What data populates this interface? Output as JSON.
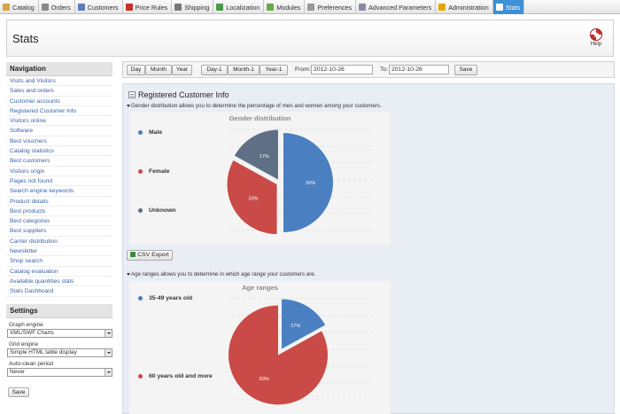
{
  "tabs": [
    {
      "label": "Catalog",
      "icon": "catalog-icon",
      "color": "#d9a441"
    },
    {
      "label": "Orders",
      "icon": "orders-icon",
      "color": "#8a8a8a"
    },
    {
      "label": "Customers",
      "icon": "customers-icon",
      "color": "#5b7fb8"
    },
    {
      "label": "Price Rules",
      "icon": "price-rules-icon",
      "color": "#c9302c"
    },
    {
      "label": "Shipping",
      "icon": "shipping-icon",
      "color": "#777777"
    },
    {
      "label": "Localization",
      "icon": "localization-icon",
      "color": "#4a9a4a"
    },
    {
      "label": "Modules",
      "icon": "modules-icon",
      "color": "#6aa84f"
    },
    {
      "label": "Preferences",
      "icon": "preferences-icon",
      "color": "#999999"
    },
    {
      "label": "Advanced Parameters",
      "icon": "advanced-parameters-icon",
      "color": "#8a8aa8"
    },
    {
      "label": "Administration",
      "icon": "administration-icon",
      "color": "#e0a800"
    },
    {
      "label": "Stats",
      "icon": "stats-icon",
      "color": "#ffffff",
      "active": true
    }
  ],
  "header": {
    "title": "Stats",
    "help_label": "Help"
  },
  "sidebar": {
    "navigation_title": "Navigation",
    "items": [
      "Visits and Visitors",
      "Sales and orders",
      "Customer accounts",
      "Registered Customer Info",
      "Visitors online",
      "Software",
      "Best vouchers",
      "Catalog statistics",
      "Best customers",
      "Visitors origin",
      "Pages not found",
      "Search engine keywords",
      "Product details",
      "Best products",
      "Best categories",
      "Best suppliers",
      "Carrier distribution",
      "Newsletter",
      "Shop search",
      "Catalog evaluation",
      "Available quantities stats",
      "Stats Dashboard"
    ],
    "settings_title": "Settings",
    "graph_engine_label": "Graph engine",
    "graph_engine_value": "XML/SWF Charts",
    "grid_engine_label": "Grid engine",
    "grid_engine_value": "Simple HTML table display",
    "auto_clean_label": "Auto-clean period",
    "auto_clean_value": "Never",
    "save_label": "Save"
  },
  "datebar": {
    "day": "Day",
    "month": "Month",
    "year": "Year",
    "day_minus": "Day-1",
    "month_minus": "Month-1",
    "year_minus": "Year-1",
    "from_label": "From:",
    "from_value": "2012-10-26",
    "to_label": "To:",
    "to_value": "2012-10-26",
    "save_label": "Save"
  },
  "main": {
    "title": "Registered Customer Info",
    "gender_desc": "Gender distribution allows you to determine the percentage of men and women among your customers.",
    "age_desc": "Age ranges allows you to determine in which age range your customers are.",
    "csv_label": "CSV Export"
  },
  "chart_data": [
    {
      "type": "pie",
      "title": "Gender distribution",
      "categories": [
        "Male",
        "Female",
        "Unknown"
      ],
      "values": [
        50,
        33,
        17
      ],
      "labels": [
        "50%",
        "33%",
        "17%"
      ],
      "colors": [
        "#4a7fc1",
        "#c94a46",
        "#5f6f85"
      ],
      "legend": "left"
    },
    {
      "type": "pie",
      "title": "Age ranges",
      "categories": [
        "35-49 years old",
        "60 years old and more"
      ],
      "values": [
        17,
        83
      ],
      "labels": [
        "17%",
        "83%"
      ],
      "colors": [
        "#4a7fc1",
        "#c94a46"
      ],
      "legend": "left"
    }
  ]
}
